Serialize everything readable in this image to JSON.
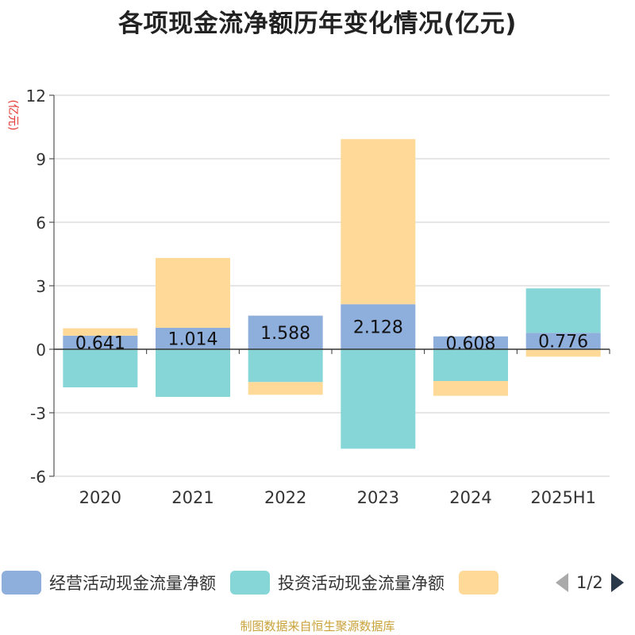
{
  "title": "各项现金流净额历年变化情况(亿元)",
  "unit_label": "(亿元)",
  "legend": {
    "items": [
      {
        "label": "经营活动现金流量净额",
        "color": "#8eaedc"
      },
      {
        "label": "投资活动现金流量净额",
        "color": "#86d6d8"
      },
      {
        "label": "",
        "color": "#fed998"
      }
    ],
    "page": "1/2"
  },
  "source": "制图数据来自恒生聚源数据库",
  "chart_data": {
    "type": "bar",
    "stacked": true,
    "categories": [
      "2020",
      "2021",
      "2022",
      "2023",
      "2024",
      "2025H1"
    ],
    "ylim": [
      -6,
      12
    ],
    "yticks": [
      -6,
      -3,
      0,
      3,
      6,
      9,
      12
    ],
    "grid": true,
    "legend_position": "bottom",
    "series": [
      {
        "name": "经营活动现金流量净额",
        "color": "#8eaedc",
        "values": [
          0.641,
          1.014,
          1.588,
          2.128,
          0.608,
          0.776
        ]
      },
      {
        "name": "投资活动现金流量净额",
        "color": "#86d6d8",
        "values": [
          -1.8,
          -2.25,
          -1.55,
          -4.7,
          -1.5,
          2.1
        ]
      },
      {
        "name": "",
        "color": "#fed998",
        "values": [
          0.35,
          3.3,
          -0.6,
          7.8,
          -0.7,
          -0.35
        ]
      }
    ],
    "data_labels": [
      "0.641",
      "1.014",
      "1.588",
      "2.128",
      "0.608",
      "0.776"
    ]
  }
}
